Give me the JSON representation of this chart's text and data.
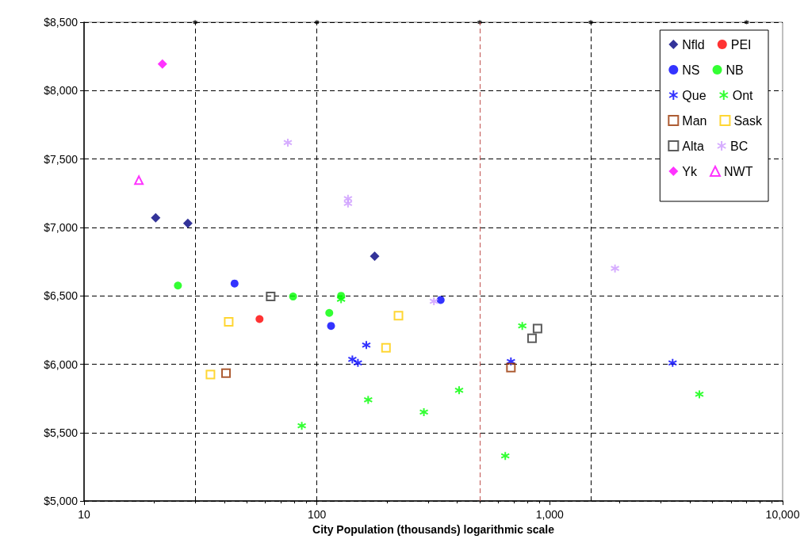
{
  "chart_data": {
    "type": "scatter",
    "xlabel": "City Population (thousands) logarithmic scale",
    "log": "x",
    "xlim": [
      10,
      10000
    ],
    "xticks": [
      10,
      100,
      {
        "value": 1000,
        "label": "1,000"
      },
      {
        "value": 10000,
        "label": "10,000"
      }
    ],
    "ylim": [
      5000,
      8500
    ],
    "yticks": [
      {
        "value": 5000,
        "label": "$5,000"
      },
      {
        "value": 5500,
        "label": "$5,500"
      },
      {
        "value": 6000,
        "label": "$6,000"
      },
      {
        "value": 6500,
        "label": "$6,500"
      },
      {
        "value": 7000,
        "label": "$7,000"
      },
      {
        "value": 7500,
        "label": "$7,500"
      },
      {
        "value": 8000,
        "label": "$8,000"
      },
      {
        "value": 8500,
        "label": "$8,500"
      }
    ],
    "grid": "y",
    "legend": "top right",
    "ref_lines": [
      {
        "axis": "x",
        "value": 30,
        "color": "#000000",
        "line_style": "dashed"
      },
      {
        "axis": "x",
        "value": 100,
        "color": "#000000",
        "line_style": "dashed"
      },
      {
        "axis": "x",
        "value": 500,
        "color": "#c0504d",
        "line_style": "dashed"
      },
      {
        "axis": "x",
        "value": 1500,
        "color": "#000000",
        "line_style": "dashed"
      }
    ],
    "series": [
      {
        "name": "Nfld",
        "color": "#000080",
        "marker": "diamond",
        "x": [
          20.3,
          27.9,
          177
        ],
        "values": [
          7070,
          7030,
          6790
        ]
      },
      {
        "name": "PEI",
        "color": "#ff0000",
        "marker": "circle",
        "x": [
          56.7
        ],
        "values": [
          6330
        ]
      },
      {
        "name": "NS",
        "color": "#0000ff",
        "marker": "circle",
        "x": [
          44.3,
          115,
          340
        ],
        "values": [
          6590,
          6280,
          6470
        ]
      },
      {
        "name": "NB",
        "color": "#00ff00",
        "marker": "circle",
        "x": [
          25.3,
          79,
          113,
          127
        ],
        "values": [
          6575,
          6495,
          6375,
          6500
        ]
      },
      {
        "name": "Que",
        "color": "#0000ff",
        "marker": "cross",
        "x": [
          163,
          142,
          150,
          681,
          3370
        ],
        "values": [
          6140,
          6035,
          6010,
          6020,
          6010
        ]
      },
      {
        "name": "Ont",
        "color": "#00ff00",
        "marker": "cross",
        "x": [
          127,
          166,
          288,
          86.1,
          762,
          408,
          644,
          4390
        ],
        "values": [
          6475,
          5740,
          5650,
          5550,
          6280,
          5810,
          5330,
          5780
        ]
      },
      {
        "name": "Man",
        "color": "#993300",
        "marker": "square",
        "x": [
          40.7,
          681
        ],
        "values": [
          5935,
          5975
        ]
      },
      {
        "name": "Sask",
        "color": "#ffcc00",
        "marker": "square",
        "x": [
          41.8,
          34.9,
          224,
          198
        ],
        "values": [
          6310,
          5925,
          6355,
          6120
        ]
      },
      {
        "name": "Alta",
        "color": "#333333",
        "marker": "square",
        "x": [
          63.3,
          886,
          839
        ],
        "values": [
          6495,
          6260,
          6190
        ]
      },
      {
        "name": "BC",
        "color": "#cc99ff",
        "marker": "cross",
        "x": [
          75,
          136,
          136,
          318,
          1906
        ],
        "values": [
          7620,
          7210,
          7175,
          6460,
          6700
        ]
      },
      {
        "name": "Yk",
        "color": "#ff00ff",
        "marker": "diamond",
        "x": [
          21.7
        ],
        "values": [
          8195
        ]
      },
      {
        "name": "NWT",
        "color": "#ff00ff",
        "marker": "triangle",
        "x": [
          17.2
        ],
        "values": [
          7345
        ]
      },
      {
        "color": "#000000",
        "marker": "cross",
        "x": [
          30,
          100,
          500,
          1500,
          7000
        ],
        "values": [
          8500,
          8500,
          8500,
          8500,
          8500
        ]
      }
    ]
  }
}
